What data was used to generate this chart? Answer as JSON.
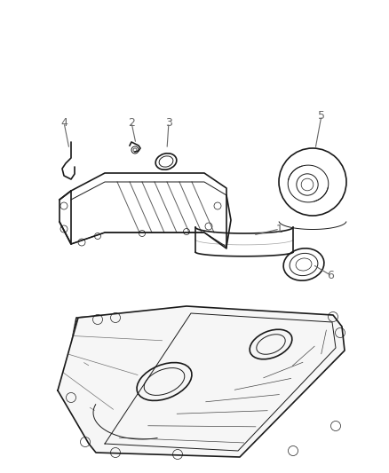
{
  "background_color": "#ffffff",
  "line_color": "#1a1a1a",
  "label_color": "#666666",
  "figure_width": 4.38,
  "figure_height": 5.33,
  "dpi": 100
}
